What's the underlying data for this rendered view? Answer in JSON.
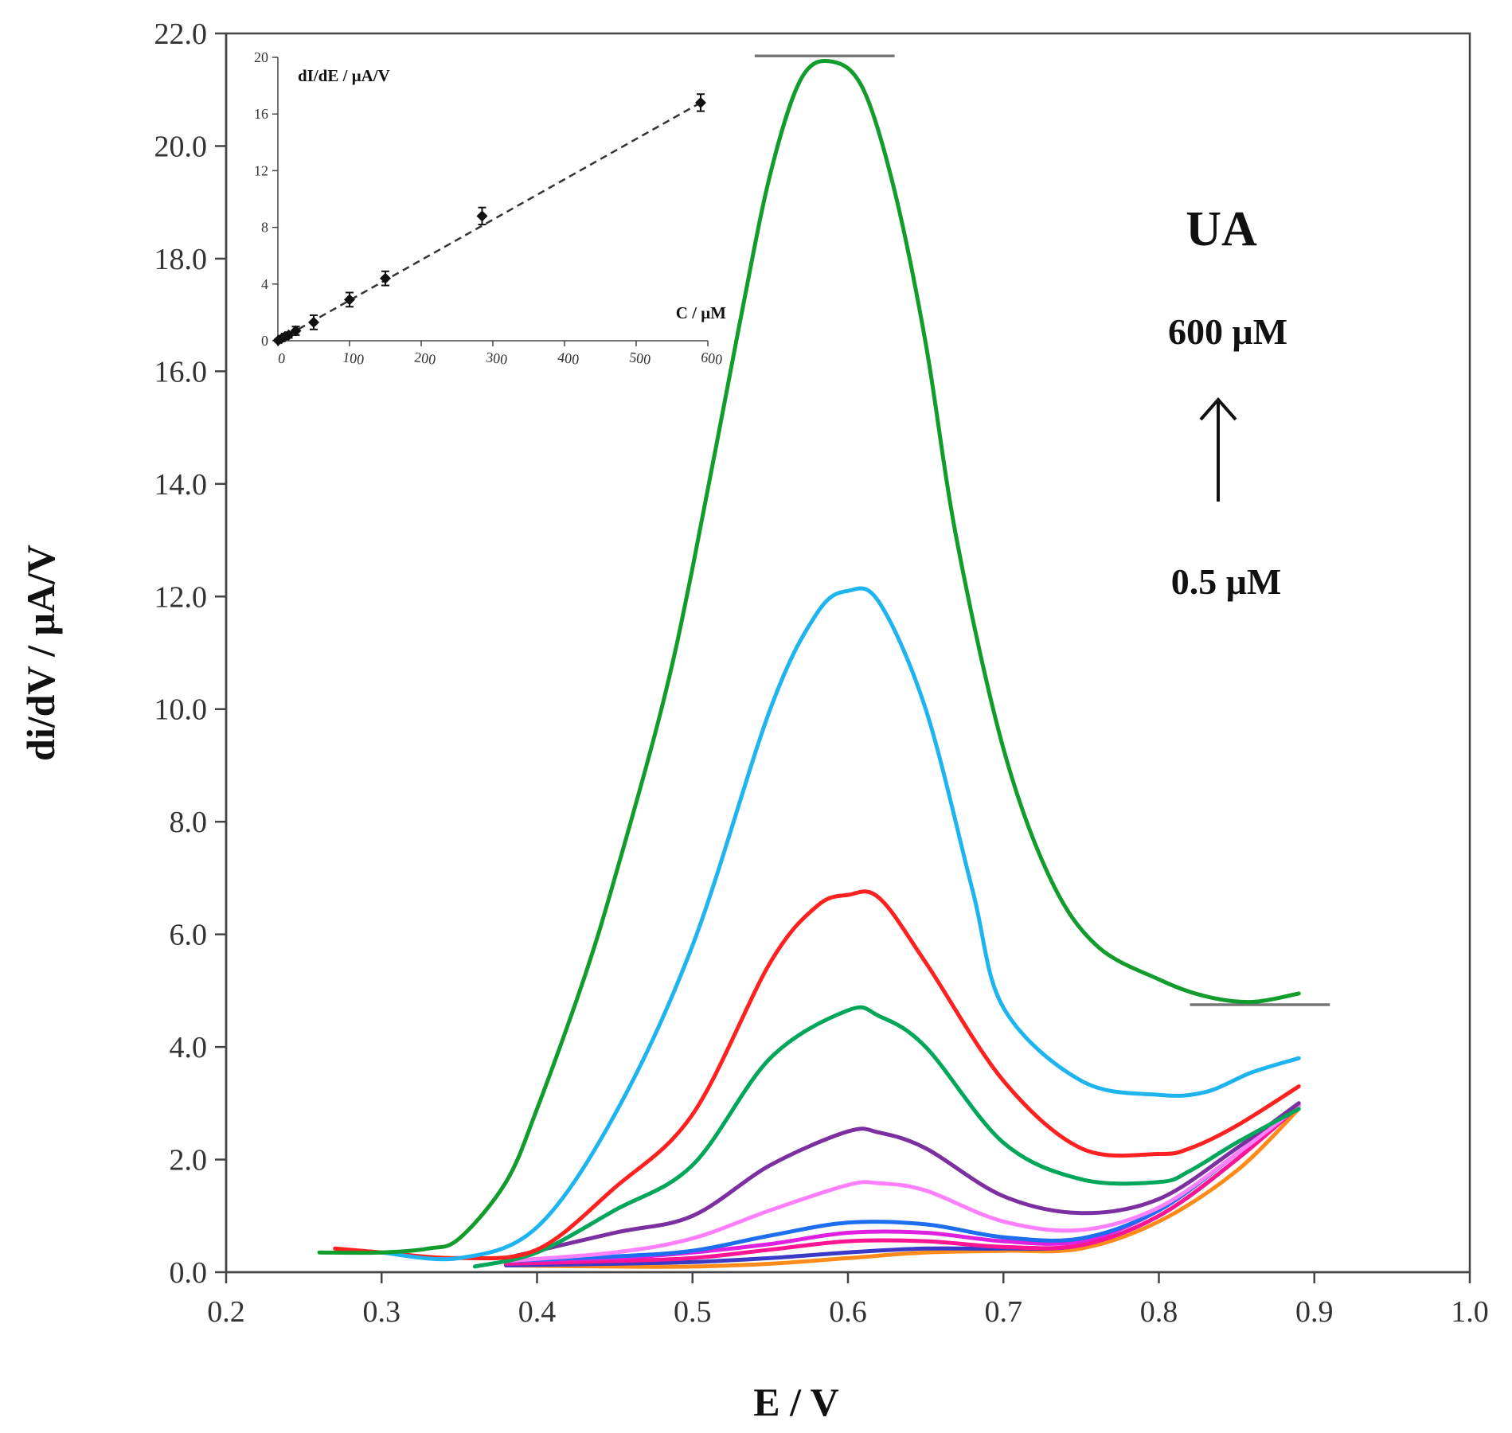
{
  "chart_data": [
    {
      "type": "line",
      "role": "main",
      "title": "",
      "xlabel": "E / V",
      "ylabel": "di/dV / μA/V",
      "xlim": [
        0.2,
        1.0
      ],
      "ylim": [
        0.0,
        22.0
      ],
      "xticks": [
        0.2,
        0.3,
        0.4,
        0.5,
        0.6,
        0.7,
        0.8,
        0.9,
        1.0
      ],
      "yticks": [
        0.0,
        2.0,
        4.0,
        6.0,
        8.0,
        10.0,
        12.0,
        14.0,
        16.0,
        18.0,
        20.0,
        22.0
      ],
      "xtick_labels": [
        "0.2",
        "0.3",
        "0.4",
        "0.5",
        "0.6",
        "0.7",
        "0.8",
        "0.9",
        "1.0"
      ],
      "ytick_labels": [
        "0.0",
        "2.0",
        "4.0",
        "6.0",
        "8.0",
        "10.0",
        "12.0",
        "14.0",
        "16.0",
        "18.0",
        "20.0",
        "22.0"
      ],
      "grid": false,
      "legend": "none",
      "annotations": {
        "analyte": "UA",
        "conc_high": "600 μM",
        "conc_low": "0.5 μM",
        "arrow": "up"
      },
      "reference_lines": [
        {
          "name": "peak-top-reference",
          "x": [
            0.54,
            0.63
          ],
          "y": 21.6,
          "color": "#777777"
        },
        {
          "name": "baseline-reference",
          "x": [
            0.82,
            0.91
          ],
          "y": 4.75,
          "color": "#777777"
        }
      ],
      "series": [
        {
          "name": "orange",
          "color": "#ff8c1a",
          "x": [
            0.38,
            0.45,
            0.5,
            0.55,
            0.6,
            0.65,
            0.7,
            0.75,
            0.8,
            0.85,
            0.89
          ],
          "y": [
            0.12,
            0.1,
            0.1,
            0.15,
            0.25,
            0.35,
            0.38,
            0.42,
            0.9,
            1.8,
            2.9
          ]
        },
        {
          "name": "dark-blue",
          "color": "#3a3ac8",
          "x": [
            0.38,
            0.45,
            0.5,
            0.55,
            0.6,
            0.65,
            0.7,
            0.75,
            0.8,
            0.85,
            0.89
          ],
          "y": [
            0.12,
            0.15,
            0.18,
            0.25,
            0.35,
            0.42,
            0.42,
            0.48,
            1.0,
            2.0,
            3.0
          ]
        },
        {
          "name": "deep-pink",
          "color": "#ff1493",
          "x": [
            0.38,
            0.45,
            0.5,
            0.55,
            0.6,
            0.65,
            0.7,
            0.75,
            0.8,
            0.85,
            0.89
          ],
          "y": [
            0.15,
            0.2,
            0.25,
            0.4,
            0.55,
            0.55,
            0.45,
            0.48,
            1.0,
            2.0,
            2.95
          ]
        },
        {
          "name": "magenta",
          "color": "#e020e0",
          "x": [
            0.38,
            0.45,
            0.5,
            0.55,
            0.6,
            0.65,
            0.7,
            0.75,
            0.8,
            0.85,
            0.89
          ],
          "y": [
            0.2,
            0.25,
            0.35,
            0.5,
            0.7,
            0.7,
            0.55,
            0.55,
            1.1,
            2.1,
            2.95
          ]
        },
        {
          "name": "blue",
          "color": "#1e6ef0",
          "x": [
            0.38,
            0.45,
            0.5,
            0.55,
            0.6,
            0.65,
            0.7,
            0.75,
            0.8,
            0.85,
            0.89
          ],
          "y": [
            0.2,
            0.28,
            0.38,
            0.65,
            0.88,
            0.85,
            0.62,
            0.6,
            1.1,
            2.1,
            2.95
          ]
        },
        {
          "name": "violet",
          "color": "#ff80ff",
          "x": [
            0.38,
            0.45,
            0.5,
            0.55,
            0.6,
            0.62,
            0.65,
            0.7,
            0.75,
            0.8,
            0.85,
            0.89
          ],
          "y": [
            0.2,
            0.35,
            0.6,
            1.1,
            1.55,
            1.58,
            1.45,
            0.9,
            0.75,
            1.15,
            2.1,
            2.95
          ]
        },
        {
          "name": "purple",
          "color": "#7b2fa0",
          "x": [
            0.38,
            0.45,
            0.5,
            0.55,
            0.6,
            0.62,
            0.65,
            0.7,
            0.75,
            0.8,
            0.85,
            0.89
          ],
          "y": [
            0.25,
            0.7,
            1.0,
            1.9,
            2.5,
            2.48,
            2.2,
            1.35,
            1.05,
            1.3,
            2.2,
            3.0
          ]
        },
        {
          "name": "green-teal",
          "color": "#00a65a",
          "x": [
            0.36,
            0.4,
            0.45,
            0.5,
            0.55,
            0.6,
            0.62,
            0.65,
            0.7,
            0.75,
            0.8,
            0.82,
            0.85,
            0.89
          ],
          "y": [
            0.1,
            0.35,
            1.1,
            1.9,
            3.8,
            4.65,
            4.55,
            4.0,
            2.3,
            1.65,
            1.6,
            1.8,
            2.3,
            2.9
          ]
        },
        {
          "name": "red",
          "color": "#ff2020",
          "x": [
            0.27,
            0.3,
            0.35,
            0.4,
            0.45,
            0.5,
            0.55,
            0.58,
            0.6,
            0.62,
            0.65,
            0.7,
            0.75,
            0.8,
            0.82,
            0.85,
            0.89
          ],
          "y": [
            0.42,
            0.35,
            0.25,
            0.4,
            1.5,
            2.8,
            5.5,
            6.5,
            6.7,
            6.65,
            5.5,
            3.4,
            2.2,
            2.1,
            2.2,
            2.6,
            3.3
          ]
        },
        {
          "name": "sky-blue",
          "color": "#1eb4f0",
          "x": [
            0.3,
            0.35,
            0.4,
            0.45,
            0.5,
            0.55,
            0.58,
            0.6,
            0.62,
            0.65,
            0.68,
            0.7,
            0.75,
            0.8,
            0.83,
            0.86,
            0.89
          ],
          "y": [
            0.35,
            0.25,
            0.8,
            2.8,
            5.8,
            10.0,
            11.7,
            12.1,
            11.9,
            10.0,
            6.8,
            4.7,
            3.4,
            3.15,
            3.2,
            3.55,
            3.8
          ]
        },
        {
          "name": "green",
          "color": "#119c2c",
          "x": [
            0.26,
            0.3,
            0.33,
            0.35,
            0.38,
            0.4,
            0.43,
            0.45,
            0.48,
            0.5,
            0.53,
            0.55,
            0.57,
            0.59,
            0.61,
            0.63,
            0.65,
            0.67,
            0.7,
            0.73,
            0.76,
            0.8,
            0.83,
            0.86,
            0.89
          ],
          "y": [
            0.35,
            0.35,
            0.42,
            0.6,
            1.6,
            2.9,
            5.2,
            7.0,
            10.0,
            12.5,
            16.8,
            19.5,
            21.2,
            21.5,
            21.0,
            19.2,
            16.5,
            13.0,
            9.3,
            7.0,
            5.8,
            5.2,
            4.9,
            4.8,
            4.95
          ]
        }
      ]
    },
    {
      "type": "scatter",
      "role": "inset",
      "title": "",
      "xlabel": "C / μM",
      "ylabel": "dI/dE / μA/V",
      "xlim": [
        0,
        600
      ],
      "ylim": [
        0,
        20
      ],
      "xticks": [
        0,
        100,
        200,
        300,
        400,
        500,
        600
      ],
      "yticks": [
        0,
        4,
        8,
        12,
        16,
        20
      ],
      "xtick_labels": [
        "0",
        "100",
        "200",
        "300",
        "400",
        "500",
        "600"
      ],
      "ytick_labels": [
        "0",
        "4",
        "8",
        "12",
        "16",
        "20"
      ],
      "grid": false,
      "legend": "none",
      "fit_line": {
        "style": "dashed",
        "x": [
          0,
          590
        ],
        "y": [
          0,
          16.8
        ]
      },
      "points": [
        {
          "x": 0.5,
          "y": 0.02,
          "err": 0.1
        },
        {
          "x": 5,
          "y": 0.15,
          "err": 0.2
        },
        {
          "x": 10,
          "y": 0.3,
          "err": 0.2
        },
        {
          "x": 15,
          "y": 0.4,
          "err": 0.2
        },
        {
          "x": 25,
          "y": 0.7,
          "err": 0.3
        },
        {
          "x": 50,
          "y": 1.3,
          "err": 0.5
        },
        {
          "x": 100,
          "y": 2.9,
          "err": 0.5
        },
        {
          "x": 150,
          "y": 4.4,
          "err": 0.5
        },
        {
          "x": 285,
          "y": 8.8,
          "err": 0.6
        },
        {
          "x": 590,
          "y": 16.8,
          "err": 0.6
        }
      ]
    }
  ]
}
